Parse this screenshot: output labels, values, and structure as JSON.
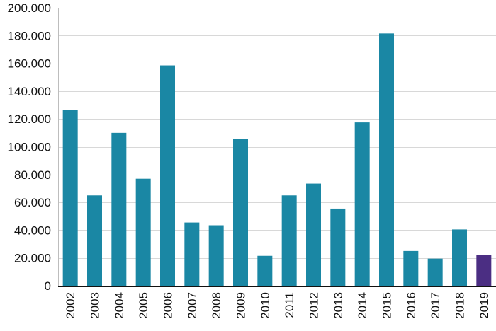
{
  "colors": {
    "bar_primary": "#1a87a4",
    "bar_highlight": "#4b2e83",
    "grid": "#d8d8d8",
    "axis": "#111111",
    "text": "#111111",
    "background": "#ffffff"
  },
  "chart_data": {
    "type": "bar",
    "title": "",
    "xlabel": "",
    "ylabel": "",
    "categories": [
      "2002",
      "2003",
      "2004",
      "2005",
      "2006",
      "2007",
      "2008",
      "2009",
      "2010",
      "2011",
      "2012",
      "2013",
      "2014",
      "2015",
      "2016",
      "2017",
      "2018",
      "2019"
    ],
    "values": [
      126500,
      65000,
      110000,
      77000,
      158500,
      45500,
      43500,
      105500,
      21500,
      65000,
      73500,
      55500,
      117500,
      181500,
      25000,
      19500,
      40500,
      22000
    ],
    "highlight_categories": [
      "2019"
    ],
    "ylim": [
      0,
      200000
    ],
    "y_ticks": [
      0,
      20000,
      40000,
      60000,
      80000,
      100000,
      120000,
      140000,
      160000,
      180000,
      200000
    ],
    "y_tick_labels": [
      "0",
      "20.000",
      "40.000",
      "60.000",
      "80.000",
      "100.000",
      "120.000",
      "140.000",
      "160.000",
      "180.000",
      "200.000"
    ],
    "grid": true,
    "legend": "none",
    "x_label_rotation": "vertical-up"
  }
}
